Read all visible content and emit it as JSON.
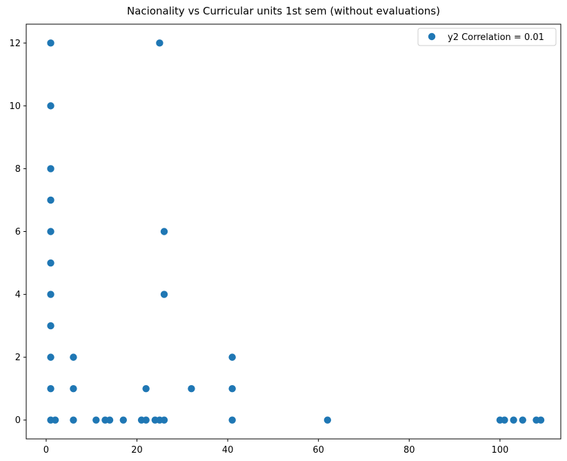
{
  "chart_data": {
    "type": "scatter",
    "title": "Nacionality vs Curricular units 1st sem (without evaluations)",
    "xlabel": "",
    "ylabel": "",
    "xlim": [
      -4.4,
      113.4
    ],
    "ylim": [
      -0.6,
      12.6
    ],
    "x_ticks": [
      0,
      20,
      40,
      60,
      80,
      100
    ],
    "y_ticks": [
      0,
      2,
      4,
      6,
      8,
      10,
      12
    ],
    "grid": false,
    "legend": {
      "placement": "top-right",
      "entries": [
        "y2 Correlation = 0.01"
      ]
    },
    "series": [
      {
        "name": "y2 Correlation = 0.01",
        "color": "#1f77b4",
        "points": [
          [
            1,
            12
          ],
          [
            1,
            10
          ],
          [
            1,
            8
          ],
          [
            1,
            7
          ],
          [
            1,
            6
          ],
          [
            1,
            5
          ],
          [
            1,
            4
          ],
          [
            1,
            3
          ],
          [
            1,
            2
          ],
          [
            1,
            1
          ],
          [
            1,
            0
          ],
          [
            2,
            0
          ],
          [
            6,
            2
          ],
          [
            6,
            1
          ],
          [
            6,
            0
          ],
          [
            11,
            0
          ],
          [
            13,
            0
          ],
          [
            14,
            0
          ],
          [
            17,
            0
          ],
          [
            21,
            0
          ],
          [
            22,
            1
          ],
          [
            22,
            0
          ],
          [
            24,
            0
          ],
          [
            25,
            12
          ],
          [
            25,
            0
          ],
          [
            26,
            6
          ],
          [
            26,
            4
          ],
          [
            26,
            0
          ],
          [
            32,
            1
          ],
          [
            41,
            2
          ],
          [
            41,
            1
          ],
          [
            41,
            0
          ],
          [
            62,
            0
          ],
          [
            100,
            0
          ],
          [
            101,
            0
          ],
          [
            103,
            0
          ],
          [
            105,
            0
          ],
          [
            108,
            0
          ],
          [
            109,
            0
          ]
        ]
      }
    ]
  }
}
